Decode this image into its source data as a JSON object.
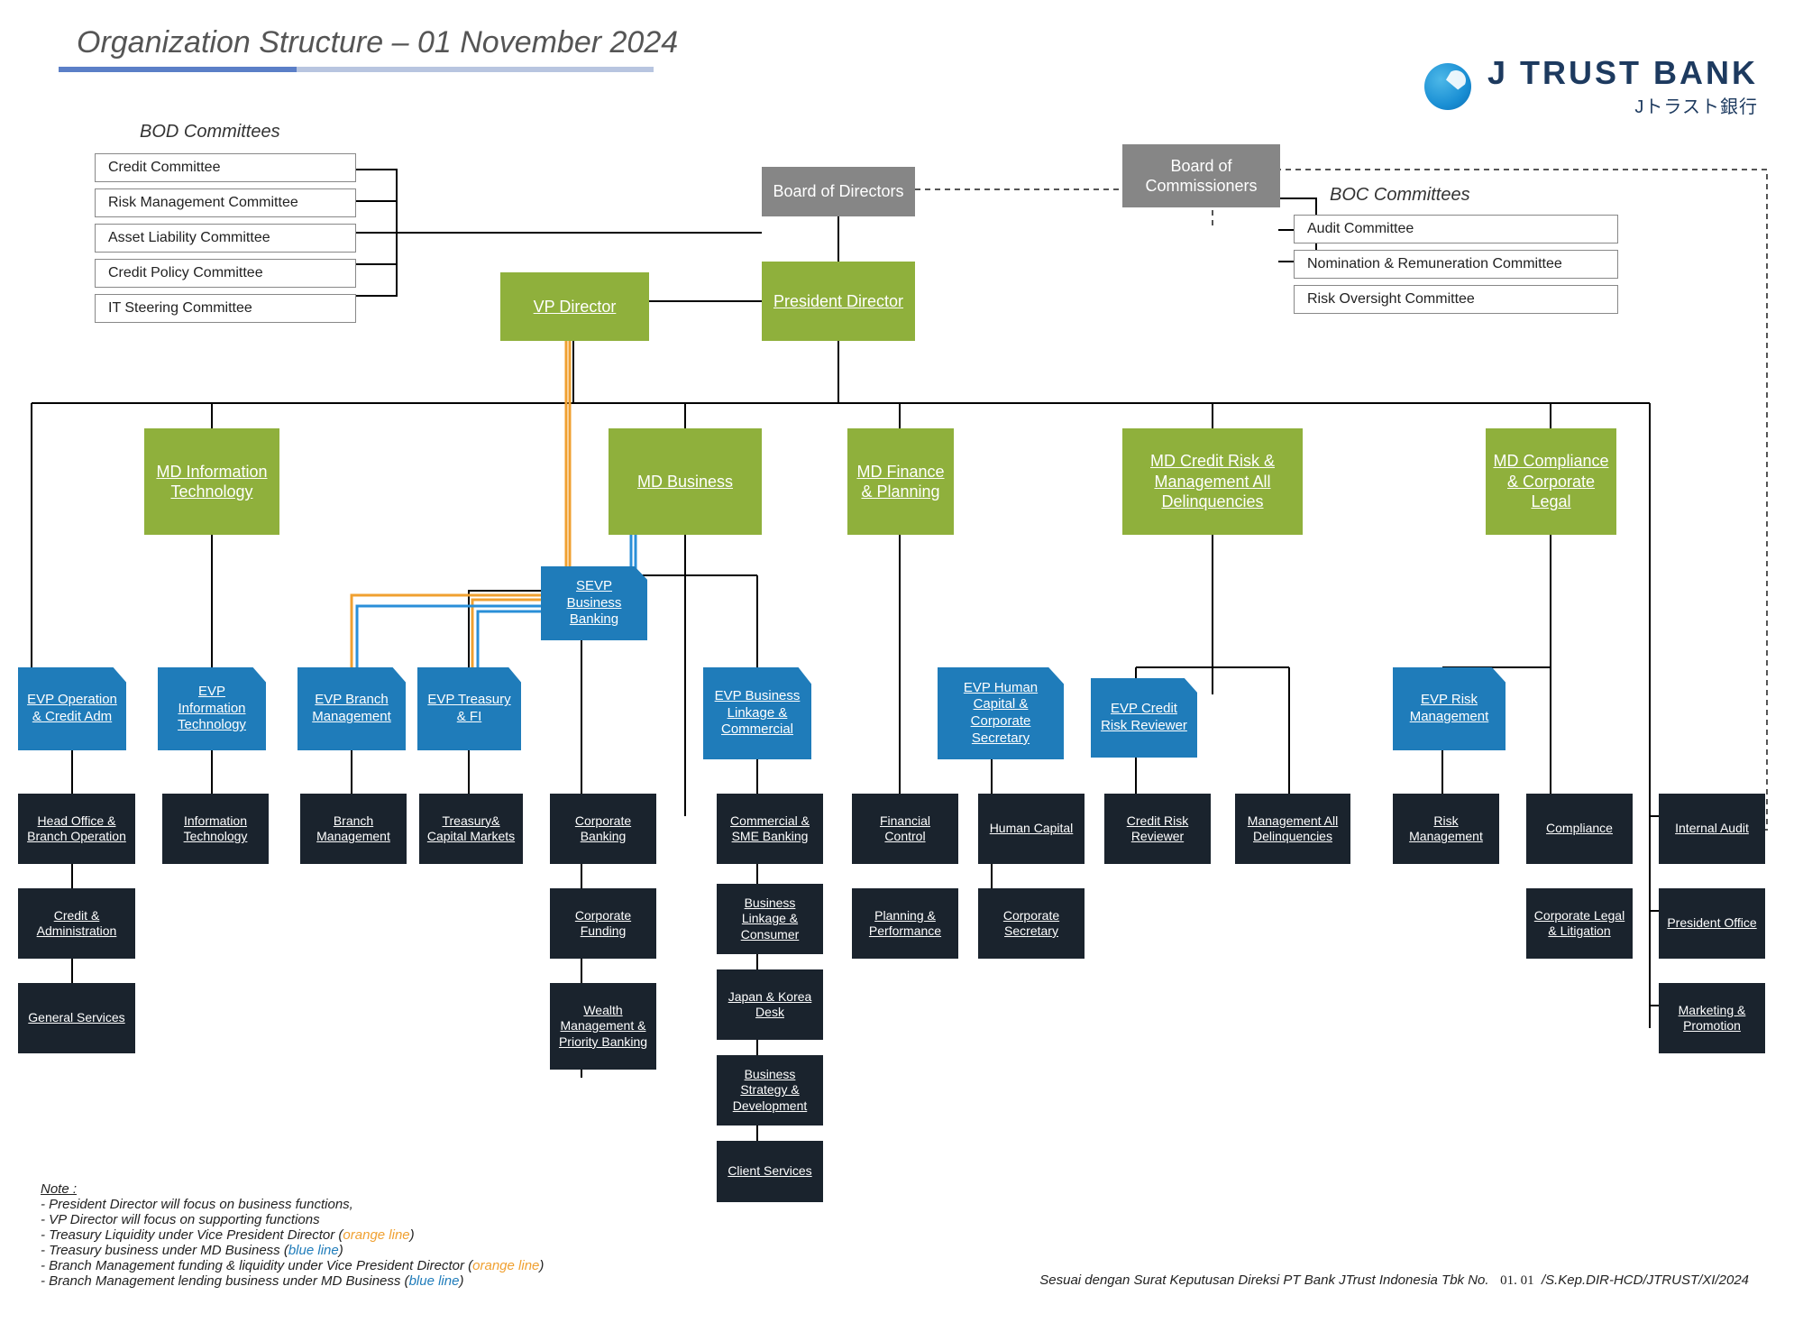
{
  "title": "Organization Structure – 01 November 2024",
  "logo": {
    "main": "J TRUST BANK",
    "jp": "Jトラスト銀行"
  },
  "colors": {
    "grey": "#868686",
    "green": "#8fb03c",
    "blue": "#1f7cba",
    "dark": "#1a232d",
    "line": "#000000",
    "orange_line": "#f0a030",
    "blue_line": "#2a8fd8",
    "dashed": "#555555"
  },
  "bod_committees": {
    "title": "BOD Committees",
    "items": [
      "Credit Committee",
      "Risk Management Committee",
      "Asset Liability Committee",
      "Credit Policy Committee",
      "IT Steering Committee"
    ]
  },
  "boc_committees": {
    "title": "BOC Committees",
    "items": [
      "Audit Committee",
      "Nomination & Remuneration Committee",
      "Risk Oversight Committee"
    ]
  },
  "top": {
    "bod": "Board of Directors",
    "boc": "Board of Commissioners",
    "president": "President Director",
    "vp": "VP Director"
  },
  "md": {
    "it": "MD Information Technology",
    "business": "MD Business",
    "finance": "MD Finance & Planning",
    "credit": "MD Credit Risk & Management All Delinquencies",
    "compliance": "MD Compliance & Corporate Legal"
  },
  "evp": {
    "sevp_bb": "SEVP Business Banking",
    "op_credit": "EVP Operation & Credit Adm",
    "it": "EVP Information Technology",
    "branch": "EVP Branch Management",
    "treasury": "EVP Treasury & FI",
    "bl_comm": "EVP Business Linkage & Commercial",
    "hc": "EVP Human Capital & Corporate Secretary",
    "crr": "EVP Credit Risk Reviewer",
    "risk": "EVP Risk Management"
  },
  "dept": {
    "ho_branch": "Head Office & Branch Operation",
    "credit_admin": "Credit & Administration",
    "gen_svc": "General Services",
    "it_dept": "Information Technology",
    "branch_mgmt": "Branch Management",
    "treasury_cap": "Treasury& Capital Markets",
    "corp_bank": "Corporate Banking",
    "corp_fund": "Corporate Funding",
    "wealth": "Wealth Management & Priority Banking",
    "comm_sme": "Commercial & SME Banking",
    "bl_consumer": "Business Linkage & Consumer",
    "japan_korea": "Japan & Korea Desk",
    "biz_strat": "Business Strategy & Development",
    "client_svc": "Client Services",
    "fin_ctrl": "Financial Control",
    "plan_perf": "Planning & Performance",
    "human_cap": "Human Capital",
    "corp_sec": "Corporate Secretary",
    "crr_dept": "Credit Risk Reviewer",
    "mgmt_delinq": "Management All Delinquencies",
    "risk_mgmt": "Risk Management",
    "compliance_d": "Compliance",
    "corp_legal": "Corporate Legal & Litigation",
    "internal_audit": "Internal Audit",
    "pres_office": "President Office",
    "marketing": "Marketing & Promotion"
  },
  "notes": {
    "header": "Note :",
    "lines": [
      "President Director will focus on business functions,",
      "VP Director will focus on supporting functions",
      "Treasury Liquidity under Vice President Director (||orange line||)",
      "Treasury business under MD Business (||blue line||)",
      "Branch Management funding & liquidity  under Vice President Director (||orange line||)",
      "Branch Management lending business under MD Business (||blue line||)"
    ]
  },
  "footer": {
    "prefix": "Sesuai dengan Surat Keputusan Direksi PT Bank JTrust Indonesia Tbk No.",
    "num": "01. 01",
    "suffix": "/S.Kep.DIR-HCD/JTRUST/XI/2024"
  },
  "layout": {
    "title_fontsize": 34,
    "box_green_fontsize": 18,
    "box_blue_fontsize": 15,
    "box_dark_fontsize": 14,
    "committee_width": 290
  }
}
